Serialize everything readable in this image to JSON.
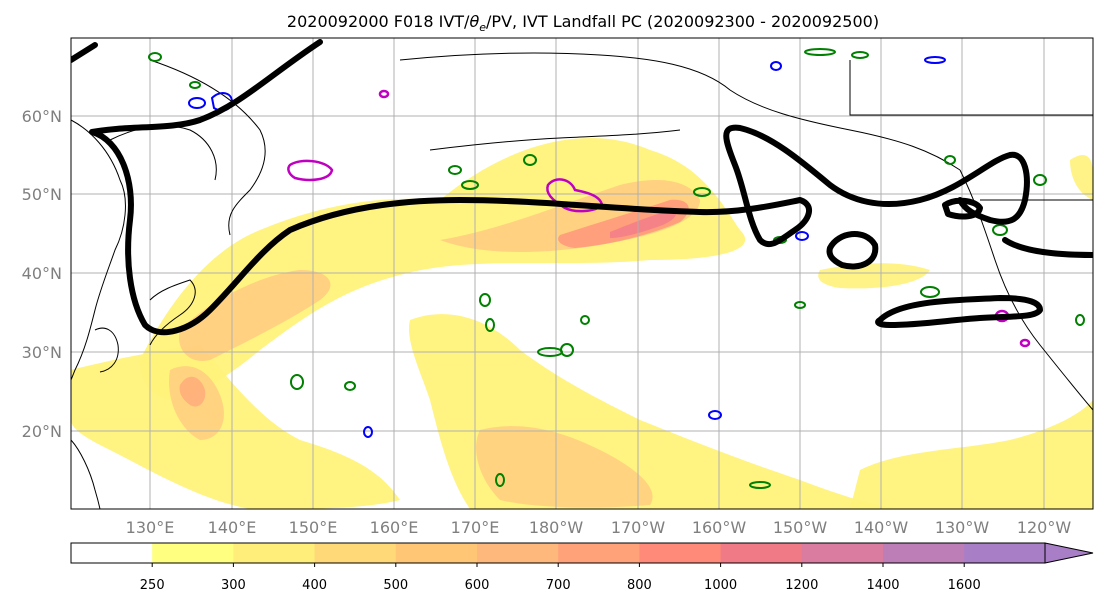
{
  "title": "2020092000 F018 IVT/θe/PV, IVT Landfall PC (2020092300 - 2020092500)",
  "title_parts": {
    "before": "2020092000 F018 IVT/",
    "theta": "θ",
    "sub": "e",
    "after": "/PV, IVT Landfall PC (2020092300 - 2020092500)"
  },
  "lat_labels": [
    "60°N",
    "50°N",
    "40°N",
    "30°N",
    "20°N"
  ],
  "lon_labels": [
    "130°E",
    "140°E",
    "150°E",
    "160°E",
    "170°E",
    "180°W",
    "170°W",
    "160°W",
    "150°W",
    "140°W",
    "130°W",
    "120°W"
  ],
  "colorbar": {
    "levels": [
      "250",
      "300",
      "400",
      "500",
      "600",
      "700",
      "800",
      "1000",
      "1200",
      "1400",
      "1600"
    ],
    "colors": [
      "#ffffff",
      "#ffff80",
      "#ffee7a",
      "#ffd877",
      "#ffc676",
      "#ffb87b",
      "#ffa27a",
      "#ff8a7a",
      "#f07a85",
      "#d97ca0",
      "#bd7eb8",
      "#a87ec6"
    ]
  },
  "colors": {
    "ivt_light": "#fff27a",
    "ivt_mid": "#ffcf80",
    "ivt_high": "#ff9c7a",
    "ivt_peak": "#f37c88",
    "landfall_pc": "#000000",
    "pv_green": "#008000",
    "pv_blue": "#0000ff",
    "theta_magenta": "#c000c0",
    "grid": "#b0b0b0",
    "coast": "#000000"
  }
}
